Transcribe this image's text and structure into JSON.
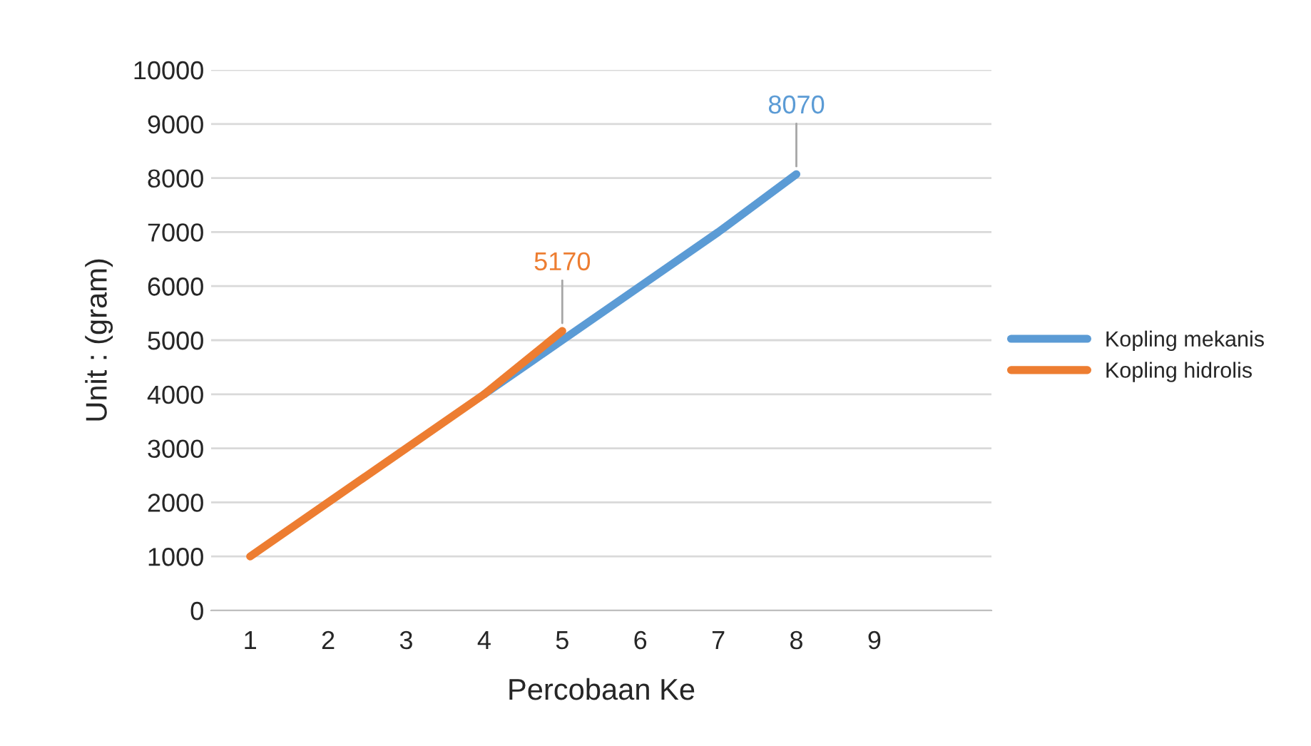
{
  "chart_data": {
    "type": "line",
    "xlabel": "Percobaan Ke",
    "ylabel": "Unit : (gram)",
    "categories": [
      "1",
      "2",
      "3",
      "4",
      "5",
      "6",
      "7",
      "8",
      "9",
      null
    ],
    "series": [
      {
        "name": "Kopling mekanis",
        "color": "#5b9bd5",
        "values": [
          null,
          null,
          null,
          4000,
          5000,
          6000,
          7000,
          8070,
          null,
          null
        ],
        "value_labels": [
          null,
          null,
          null,
          null,
          null,
          null,
          null,
          "8070",
          null,
          null
        ]
      },
      {
        "name": "Kopling hidrolis",
        "color": "#ed7d31",
        "values": [
          1000,
          2000,
          3000,
          4000,
          5170,
          null,
          null,
          null,
          null,
          null
        ],
        "value_labels": [
          null,
          null,
          null,
          null,
          "5170",
          null,
          null,
          null,
          null,
          null
        ]
      }
    ],
    "ylim": [
      0,
      10000
    ],
    "yticks": [
      0,
      1000,
      2000,
      3000,
      4000,
      5000,
      6000,
      7000,
      8000,
      9000,
      10000
    ],
    "grid": "y",
    "legend": "right",
    "marker": "none",
    "line_style": "solid"
  }
}
